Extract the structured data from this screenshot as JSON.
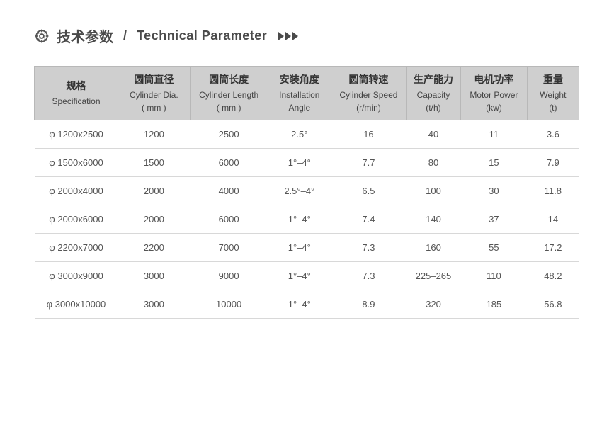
{
  "title": {
    "cn": "技术参数",
    "separator": "/",
    "en": "Technical Parameter"
  },
  "table": {
    "columns": [
      {
        "cn": "规格",
        "en": "Specification",
        "unit": ""
      },
      {
        "cn": "圆筒直径",
        "en": "Cylinder Dia.",
        "unit": "( mm )"
      },
      {
        "cn": "圆筒长度",
        "en": "Cylinder Length",
        "unit": "( mm )"
      },
      {
        "cn": "安装角度",
        "en": "Installation",
        "unit": "Angle"
      },
      {
        "cn": "圆筒转速",
        "en": "Cylinder Speed",
        "unit": "(r/min)"
      },
      {
        "cn": "生产能力",
        "en": "Capacity",
        "unit": "(t/h)"
      },
      {
        "cn": "电机功率",
        "en": "Motor Power",
        "unit": "(kw)"
      },
      {
        "cn": "重量",
        "en": "Weight",
        "unit": "(t)"
      }
    ],
    "rows": [
      [
        "φ 1200x2500",
        "1200",
        "2500",
        "2.5°",
        "16",
        "40",
        "11",
        "3.6"
      ],
      [
        "φ 1500x6000",
        "1500",
        "6000",
        "1°–4°",
        "7.7",
        "80",
        "15",
        "7.9"
      ],
      [
        "φ 2000x4000",
        "2000",
        "4000",
        "2.5°–4°",
        "6.5",
        "100",
        "30",
        "11.8"
      ],
      [
        "φ 2000x6000",
        "2000",
        "6000",
        "1°–4°",
        "7.4",
        "140",
        "37",
        "14"
      ],
      [
        "φ 2200x7000",
        "2200",
        "7000",
        "1°–4°",
        "7.3",
        "160",
        "55",
        "17.2"
      ],
      [
        "φ 3000x9000",
        "3000",
        "9000",
        "1°–4°",
        "7.3",
        "225–265",
        "110",
        "48.2"
      ],
      [
        "φ 3000x10000",
        "3000",
        "10000",
        "1°–4°",
        "8.9",
        "320",
        "185",
        "56.8"
      ]
    ],
    "header_bg": "#cfcfcf",
    "header_border": "#b8b8b8",
    "row_border": "#d8d8d8",
    "text_color": "#555555",
    "header_text_color": "#333333"
  },
  "colors": {
    "icon": "#555555",
    "title": "#4a4a4a",
    "arrow": "#4a4a4a",
    "background": "#ffffff"
  }
}
